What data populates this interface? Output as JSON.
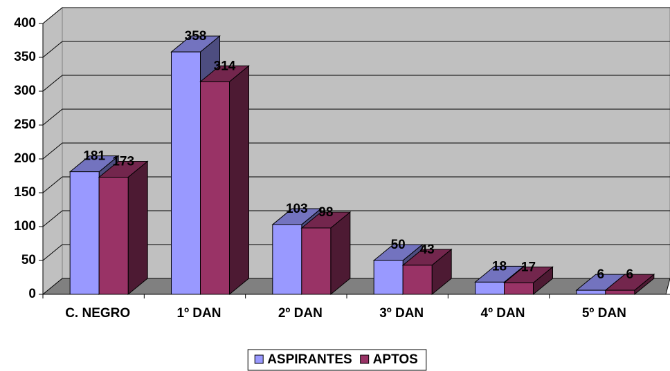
{
  "chart_data": {
    "type": "bar3d",
    "categories": [
      "C. NEGRO",
      "1º DAN",
      "2º DAN",
      "3º DAN",
      "4º DAN",
      "5º DAN"
    ],
    "series": [
      {
        "name": "ASPIRANTES",
        "color": "#9999ff",
        "values": [
          181,
          358,
          103,
          50,
          18,
          6
        ]
      },
      {
        "name": "APTOS",
        "color": "#993366",
        "values": [
          173,
          314,
          98,
          43,
          17,
          6
        ]
      }
    ],
    "ylim": [
      0,
      400
    ],
    "yticks": [
      0,
      50,
      100,
      150,
      200,
      250,
      300,
      350,
      400
    ],
    "grid": true,
    "legend": "bottom"
  }
}
